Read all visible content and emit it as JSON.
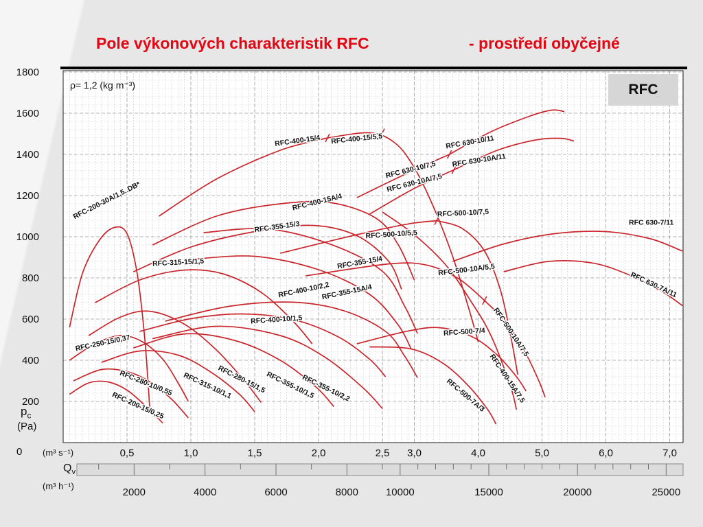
{
  "title": {
    "part1": "Pole výkonových charakteristik RFC",
    "part2": "- prostředí obyčejné"
  },
  "chart_data": {
    "type": "line",
    "badge": "RFC",
    "density_note": "ρ= 1,2 (kg m⁻³)",
    "line_color": "#c8252c",
    "title_color": "#e30613",
    "y_range": [
      0,
      1800
    ],
    "x_range": [
      0,
      7.2
    ],
    "x_scale_break": 2.5,
    "y_axis": {
      "sym": "p",
      "sub": "c",
      "unit": "(Pa)",
      "zero": "0",
      "ticks": [
        200,
        400,
        600,
        800,
        1000,
        1200,
        1400,
        1600,
        1800
      ]
    },
    "x_axis_primary": {
      "unit": "(m³ s⁻¹)",
      "ticks": [
        {
          "v": 0.5,
          "label": "0,5"
        },
        {
          "v": 1.0,
          "label": "1,0"
        },
        {
          "v": 1.5,
          "label": "1,5"
        },
        {
          "v": 2.0,
          "label": "2,0"
        },
        {
          "v": 2.5,
          "label": "2,5"
        },
        {
          "v": 3.0,
          "label": "3,0"
        },
        {
          "v": 4.0,
          "label": "4,0"
        },
        {
          "v": 5.0,
          "label": "5,0"
        },
        {
          "v": 6.0,
          "label": "6,0"
        },
        {
          "v": 7.0,
          "label": "7,0"
        }
      ]
    },
    "x_axis_secondary": {
      "sym": "Q",
      "sub": "v",
      "unit": "(m³ h⁻¹)",
      "ticks": [
        {
          "v": 2000,
          "label": "2000"
        },
        {
          "v": 4000,
          "label": "4000"
        },
        {
          "v": 6000,
          "label": "6000"
        },
        {
          "v": 8000,
          "label": "8000"
        },
        {
          "v": 10000,
          "label": "10000"
        },
        {
          "v": 15000,
          "label": "15000"
        },
        {
          "v": 20000,
          "label": "20000"
        },
        {
          "v": 25000,
          "label": "25000"
        }
      ]
    },
    "segment_marks": [
      [
        2.07,
        1480
      ],
      [
        2.5,
        1505
      ],
      [
        3.35,
        1078
      ],
      [
        3.55,
        1400
      ],
      [
        3.62,
        1325
      ],
      [
        4.1,
        690
      ]
    ],
    "series": [
      {
        "name": "RFC-200-15/0,25",
        "label": {
          "x": 0.38,
          "y": 225,
          "a": 24
        },
        "points": [
          [
            0.05,
            235
          ],
          [
            0.2,
            290
          ],
          [
            0.35,
            295
          ],
          [
            0.5,
            255
          ],
          [
            0.65,
            175
          ],
          [
            0.78,
            95
          ]
        ]
      },
      {
        "name": "RFC-280-10/0,55",
        "label": {
          "x": 0.44,
          "y": 330,
          "a": 22
        },
        "points": [
          [
            0.08,
            300
          ],
          [
            0.3,
            355
          ],
          [
            0.5,
            345
          ],
          [
            0.68,
            295
          ],
          [
            0.85,
            210
          ],
          [
            0.98,
            120
          ]
        ]
      },
      {
        "name": "RFC-250-15/0,37",
        "label": {
          "x": 0.1,
          "y": 445,
          "a": -12
        },
        "points": [
          [
            0.05,
            400
          ],
          [
            0.25,
            480
          ],
          [
            0.45,
            520
          ],
          [
            0.62,
            490
          ],
          [
            0.78,
            405
          ],
          [
            0.9,
            290
          ],
          [
            0.98,
            200
          ]
        ]
      },
      {
        "name": "RFC-315-10/1,1",
        "label": {
          "x": 0.94,
          "y": 320,
          "a": 25
        },
        "points": [
          [
            0.3,
            390
          ],
          [
            0.6,
            445
          ],
          [
            0.9,
            425
          ],
          [
            1.15,
            345
          ],
          [
            1.38,
            235
          ],
          [
            1.5,
            150
          ]
        ]
      },
      {
        "name": "RFC-280-15/1,5",
        "label": {
          "x": 1.21,
          "y": 355,
          "a": 27
        },
        "points": [
          [
            0.2,
            520
          ],
          [
            0.45,
            610
          ],
          [
            0.68,
            638
          ],
          [
            0.95,
            575
          ],
          [
            1.2,
            450
          ],
          [
            1.42,
            300
          ],
          [
            1.55,
            195
          ]
        ]
      },
      {
        "name": "RFC-355-10/1,5",
        "label": {
          "x": 1.59,
          "y": 325,
          "a": 26
        },
        "points": [
          [
            0.55,
            460
          ],
          [
            0.95,
            528
          ],
          [
            1.35,
            495
          ],
          [
            1.7,
            400
          ],
          [
            1.98,
            270
          ],
          [
            2.12,
            175
          ]
        ]
      },
      {
        "name": "RFC-355-10/2,2",
        "label": {
          "x": 1.87,
          "y": 310,
          "a": 26
        },
        "points": [
          [
            0.7,
            505
          ],
          [
            1.2,
            565
          ],
          [
            1.7,
            520
          ],
          [
            2.05,
            415
          ],
          [
            2.35,
            265
          ],
          [
            2.5,
            165
          ]
        ]
      },
      {
        "name": "RFC-400-10/1,5",
        "label": {
          "x": 1.47,
          "y": 578,
          "a": -4
        },
        "points": [
          [
            0.6,
            540
          ],
          [
            1.0,
            602
          ],
          [
            1.4,
            625
          ],
          [
            1.8,
            598
          ],
          [
            2.15,
            515
          ],
          [
            2.4,
            405
          ],
          [
            2.55,
            320
          ]
        ]
      },
      {
        "name": "RFC-400-10/2,2",
        "label": {
          "x": 1.69,
          "y": 705,
          "a": -12
        },
        "points": [
          [
            0.8,
            590
          ],
          [
            1.3,
            662
          ],
          [
            1.8,
            682
          ],
          [
            2.2,
            640
          ],
          [
            2.55,
            540
          ],
          [
            2.85,
            420
          ],
          [
            3.05,
            315
          ]
        ]
      },
      {
        "name": "RFC-315-15/1,5",
        "label": {
          "x": 0.7,
          "y": 858,
          "a": -3
        },
        "points": [
          [
            0.25,
            680
          ],
          [
            0.6,
            790
          ],
          [
            0.95,
            838
          ],
          [
            1.25,
            820
          ],
          [
            1.55,
            730
          ],
          [
            1.8,
            590
          ],
          [
            1.95,
            480
          ]
        ]
      },
      {
        "name": "RFC-200-30A/1,5..DB*",
        "label": {
          "x": 0.09,
          "y": 1085,
          "a": -27
        },
        "points": [
          [
            0.05,
            560
          ],
          [
            0.15,
            820
          ],
          [
            0.28,
            980
          ],
          [
            0.4,
            1045
          ],
          [
            0.5,
            1015
          ],
          [
            0.58,
            820
          ],
          [
            0.64,
            500
          ],
          [
            0.68,
            150
          ]
        ]
      },
      {
        "name": "RFC-355-15/3",
        "label": {
          "x": 1.5,
          "y": 1022,
          "a": -8
        },
        "points": [
          [
            0.55,
            830
          ],
          [
            1.0,
            950
          ],
          [
            1.5,
            1025
          ],
          [
            1.95,
            1055
          ],
          [
            2.3,
            1005
          ],
          [
            2.6,
            880
          ],
          [
            2.8,
            745
          ]
        ]
      },
      {
        "name": "RFC-355-15/4",
        "label": {
          "x": 2.15,
          "y": 845,
          "a": -10
        },
        "points": [
          [
            1.1,
            1020
          ],
          [
            1.6,
            1038
          ],
          [
            2.1,
            962
          ],
          [
            2.5,
            832
          ],
          [
            2.85,
            662
          ],
          [
            3.05,
            530
          ]
        ]
      },
      {
        "name": "RFC-355-15A/4",
        "label": {
          "x": 2.03,
          "y": 695,
          "a": -12
        },
        "points": [
          [
            1.0,
            890
          ],
          [
            1.5,
            905
          ],
          [
            2.0,
            840
          ],
          [
            2.4,
            720
          ],
          [
            2.75,
            570
          ],
          [
            2.95,
            455
          ]
        ]
      },
      {
        "name": "RFC-400-15/4",
        "label": {
          "x": 1.66,
          "y": 1440,
          "a": -8
        },
        "points": [
          [
            0.75,
            1100
          ],
          [
            1.2,
            1280
          ],
          [
            1.7,
            1420
          ],
          [
            2.07,
            1480
          ]
        ]
      },
      {
        "name": "RFC-400-15/5,5",
        "label": {
          "x": 2.1,
          "y": 1452,
          "a": -6
        },
        "points": [
          [
            2.07,
            1480
          ],
          [
            2.4,
            1505
          ],
          [
            2.7,
            1455
          ],
          [
            3.0,
            1335
          ],
          [
            3.3,
            1145
          ],
          [
            3.6,
            905
          ],
          [
            3.85,
            655
          ],
          [
            4.0,
            490
          ]
        ]
      },
      {
        "name": "RFC-400-15A/4",
        "label": {
          "x": 1.8,
          "y": 1128,
          "a": -14
        },
        "points": [
          [
            0.7,
            960
          ],
          [
            1.2,
            1100
          ],
          [
            1.7,
            1160
          ],
          [
            2.1,
            1165
          ],
          [
            2.45,
            1090
          ],
          [
            2.75,
            960
          ],
          [
            3.0,
            790
          ]
        ]
      },
      {
        "name": "RFC-400-15A/7,5",
        "label": {
          "x": 4.18,
          "y": 420,
          "a": 56
        },
        "points": [
          [
            2.5,
            1120
          ],
          [
            3.0,
            1010
          ],
          [
            3.5,
            860
          ],
          [
            3.9,
            680
          ],
          [
            4.2,
            520
          ],
          [
            4.5,
            280
          ],
          [
            4.6,
            160
          ]
        ]
      },
      {
        "name": "RFC-500-10/5,5",
        "label": {
          "x": 2.37,
          "y": 992,
          "a": -4
        },
        "points": [
          [
            1.7,
            920
          ],
          [
            2.3,
            1010
          ],
          [
            2.9,
            1062
          ],
          [
            3.35,
            1078
          ]
        ]
      },
      {
        "name": "RFC-500-10/7,5",
        "label": {
          "x": 3.36,
          "y": 1098,
          "a": -3
        },
        "points": [
          [
            3.35,
            1078
          ],
          [
            3.75,
            1040
          ],
          [
            4.1,
            930
          ],
          [
            4.35,
            740
          ],
          [
            4.52,
            500
          ],
          [
            4.62,
            330
          ]
        ]
      },
      {
        "name": "RFC-500-10A/5,5",
        "label": {
          "x": 3.38,
          "y": 812,
          "a": -7
        },
        "points": [
          [
            1.9,
            810
          ],
          [
            2.6,
            868
          ],
          [
            3.2,
            862
          ],
          [
            3.7,
            795
          ],
          [
            4.1,
            690
          ]
        ]
      },
      {
        "name": "RFC-500-10A/7,5",
        "label": {
          "x": 4.24,
          "y": 645,
          "a": 56
        },
        "points": [
          [
            4.1,
            690
          ],
          [
            4.45,
            580
          ],
          [
            4.75,
            430
          ],
          [
            4.95,
            300
          ],
          [
            5.05,
            220
          ]
        ]
      },
      {
        "name": "RFC-500-7/4",
        "label": {
          "x": 3.46,
          "y": 520,
          "a": -4
        },
        "points": [
          [
            2.3,
            480
          ],
          [
            2.9,
            542
          ],
          [
            3.4,
            558
          ],
          [
            3.9,
            515
          ],
          [
            4.3,
            425
          ],
          [
            4.6,
            320
          ],
          [
            4.75,
            250
          ]
        ]
      },
      {
        "name": "RFC-500-7A/3",
        "label": {
          "x": 3.5,
          "y": 295,
          "a": 40
        },
        "points": [
          [
            2.4,
            465
          ],
          [
            2.95,
            455
          ],
          [
            3.45,
            385
          ],
          [
            3.85,
            275
          ],
          [
            4.15,
            160
          ],
          [
            4.28,
            90
          ]
        ]
      },
      {
        "name": "RFC 630-10/7,5",
        "label": {
          "x": 2.56,
          "y": 1285,
          "a": -14
        },
        "points": [
          [
            2.3,
            1190
          ],
          [
            2.9,
            1310
          ],
          [
            3.55,
            1400
          ]
        ]
      },
      {
        "name": "RFC 630-10/11",
        "label": {
          "x": 3.5,
          "y": 1428,
          "a": -10
        },
        "points": [
          [
            3.55,
            1400
          ],
          [
            4.2,
            1510
          ],
          [
            4.8,
            1585
          ],
          [
            5.15,
            1615
          ],
          [
            5.35,
            1608
          ]
        ]
      },
      {
        "name": "RFC 630-10A/7,5",
        "label": {
          "x": 2.58,
          "y": 1218,
          "a": -14
        },
        "points": [
          [
            2.4,
            1110
          ],
          [
            3.0,
            1235
          ],
          [
            3.62,
            1325
          ]
        ]
      },
      {
        "name": "RFC 630-10A/11",
        "label": {
          "x": 3.6,
          "y": 1340,
          "a": -9
        },
        "points": [
          [
            3.62,
            1325
          ],
          [
            4.3,
            1420
          ],
          [
            4.9,
            1470
          ],
          [
            5.3,
            1478
          ],
          [
            5.5,
            1465
          ]
        ]
      },
      {
        "name": "RFC 630-7/11",
        "label": {
          "x": 6.36,
          "y": 1058,
          "a": 0
        },
        "points": [
          [
            3.6,
            880
          ],
          [
            4.4,
            965
          ],
          [
            5.2,
            1015
          ],
          [
            6.0,
            1025
          ],
          [
            6.7,
            990
          ],
          [
            7.2,
            930
          ]
        ]
      },
      {
        "name": "RFC 630-7A/11",
        "label": {
          "x": 6.38,
          "y": 808,
          "a": 25
        },
        "points": [
          [
            4.4,
            830
          ],
          [
            5.1,
            880
          ],
          [
            5.8,
            872
          ],
          [
            6.4,
            810
          ],
          [
            6.9,
            730
          ],
          [
            7.2,
            665
          ]
        ]
      }
    ]
  }
}
